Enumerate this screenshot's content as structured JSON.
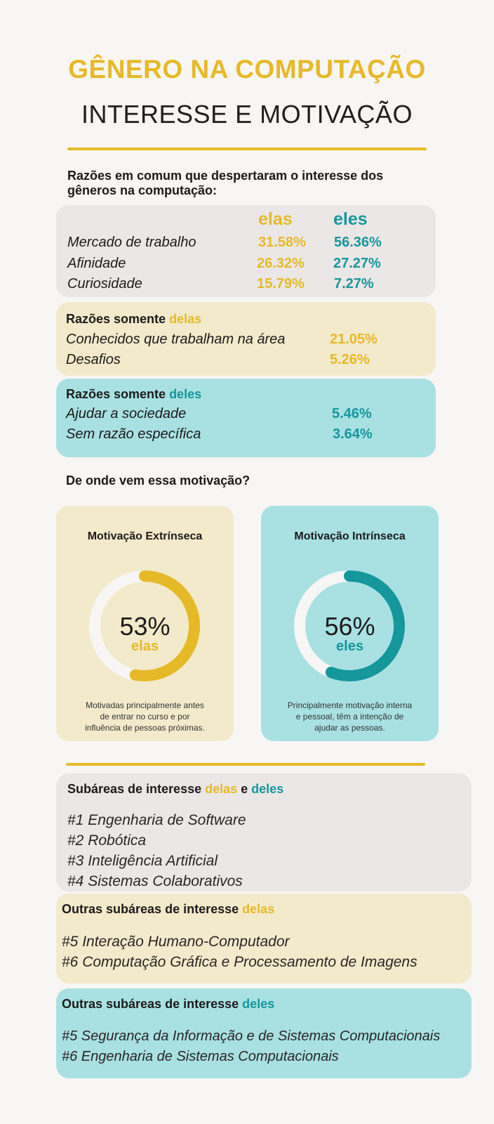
{
  "title": "GÊNERO NA COMPUTAÇÃO",
  "subtitle": "INTERESSE E MOTIVAÇÃO",
  "common_reasons": {
    "heading_line1": "Razões em comum que despertaram o interesse dos",
    "heading_line2": "gêneros na computação:",
    "col_elas": "elas",
    "col_eles": "eles",
    "rows": [
      {
        "label": "Mercado de trabalho",
        "elas": "31.58%",
        "eles": "56.36%"
      },
      {
        "label": "Afinidade",
        "elas": "26.32%",
        "eles": "27.27%"
      },
      {
        "label": "Curiosidade",
        "elas": "15.79%",
        "eles": "7.27%"
      }
    ]
  },
  "only_elas": {
    "title_prefix": "Razões somente ",
    "title_highlight": "delas",
    "rows": [
      {
        "label": "Conhecidos que trabalham na área",
        "value": "21.05%"
      },
      {
        "label": "Desafios",
        "value": "5.26%"
      }
    ]
  },
  "only_eles": {
    "title_prefix": "Razões somente ",
    "title_highlight": "deles",
    "rows": [
      {
        "label": "Ajudar a sociedade",
        "value": "5.46%"
      },
      {
        "label": "Sem razão específica",
        "value": "3.64%"
      }
    ]
  },
  "motivation": {
    "question": "De onde vem essa motivação?",
    "extrinsic": {
      "title": "Motivação Extrínseca",
      "percent_label": "53%",
      "percent_value": 53,
      "group": "elas",
      "caption_line1": "Motivadas principalmente antes",
      "caption_line2": "de entrar no curso e por",
      "caption_line3": "influência de pessoas próximas.",
      "color": "#e6b928"
    },
    "intrinsic": {
      "title": "Motivação Intrínseca",
      "percent_label": "56%",
      "percent_value": 56,
      "group": "eles",
      "caption_line1": "Principalmente motivação interna",
      "caption_line2": "e pessoal, têm a intenção de",
      "caption_line3": "ajudar as pessoas.",
      "color": "#15979c"
    }
  },
  "subareas_common": {
    "title_prefix": "Subáreas de interesse ",
    "title_elas": "delas",
    "title_and": " e ",
    "title_eles": "deles",
    "items": [
      "#1 Engenharia de Software",
      "#2 Robótica",
      "#3 Inteligência Artificial",
      "#4 Sistemas Colaborativos"
    ]
  },
  "subareas_elas": {
    "title_prefix": "Outras subáreas de interesse ",
    "title_highlight": "delas",
    "items": [
      "#5 Interação Humano-Computador",
      "#6 Computação Gráfica e Processamento de Imagens"
    ]
  },
  "subareas_eles": {
    "title_prefix": "Outras subáreas de interesse ",
    "title_highlight": "deles",
    "items": [
      "#5 Segurança da Informação e de Sistemas Computacionais",
      "#6 Engenharia de Sistemas Computacionais"
    ]
  },
  "colors": {
    "accent_yellow": "#e6b928",
    "accent_teal": "#15979c",
    "panel_grey": "#ebe7e6",
    "panel_cream": "#f2eacb",
    "panel_cyan": "#a9e1e3"
  }
}
